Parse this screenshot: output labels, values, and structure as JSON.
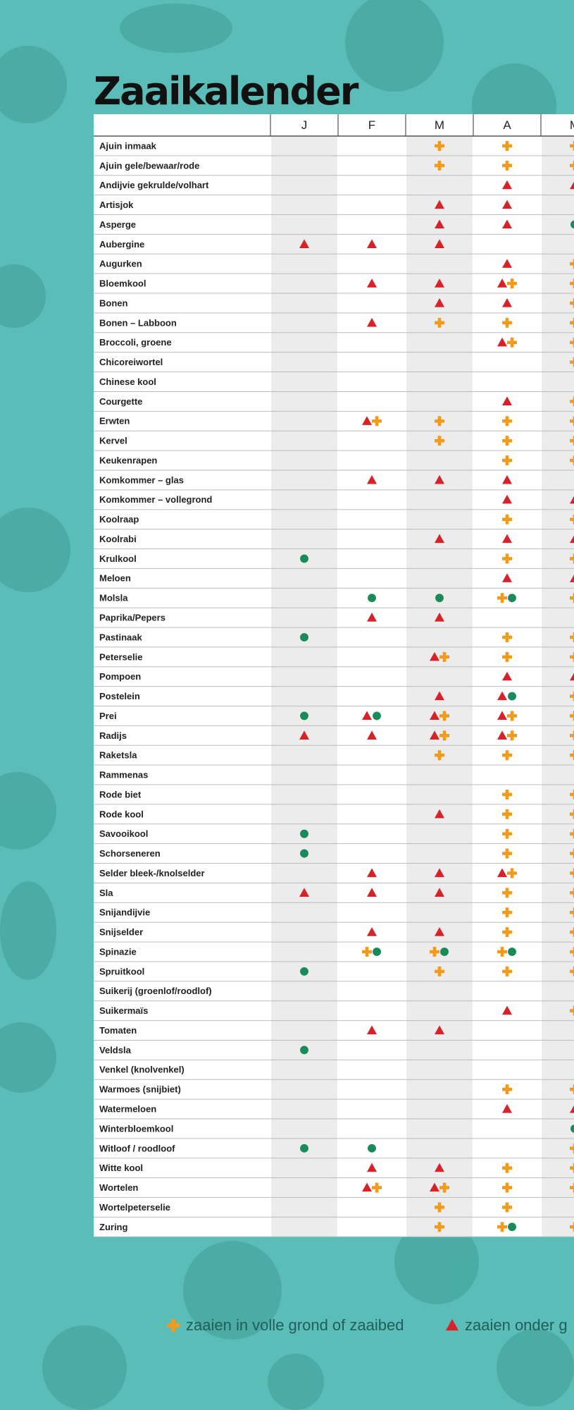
{
  "title": "Zaaikalender",
  "table": {
    "columns": [
      "J",
      "F",
      "M",
      "A",
      "M"
    ],
    "rows": [
      {
        "name": "Ajuin inmaak",
        "cells": [
          [],
          [],
          [
            "plus"
          ],
          [
            "plus"
          ],
          [
            "plus"
          ]
        ]
      },
      {
        "name": "Ajuin gele/bewaar/rode",
        "cells": [
          [],
          [],
          [
            "plus"
          ],
          [
            "plus"
          ],
          [
            "plus"
          ]
        ]
      },
      {
        "name": "Andijvie gekrulde/volhart",
        "cells": [
          [],
          [],
          [],
          [
            "triangle"
          ],
          [
            "triangle"
          ]
        ]
      },
      {
        "name": "Artisjok",
        "cells": [
          [],
          [],
          [
            "triangle"
          ],
          [
            "triangle"
          ],
          []
        ]
      },
      {
        "name": "Asperge",
        "cells": [
          [],
          [],
          [
            "triangle"
          ],
          [
            "triangle"
          ],
          [
            "circle"
          ]
        ]
      },
      {
        "name": "Aubergine",
        "cells": [
          [
            "triangle"
          ],
          [
            "triangle"
          ],
          [
            "triangle"
          ],
          [],
          []
        ]
      },
      {
        "name": "Augurken",
        "cells": [
          [],
          [],
          [],
          [
            "triangle"
          ],
          [
            "plus"
          ]
        ]
      },
      {
        "name": "Bloemkool",
        "cells": [
          [],
          [
            "triangle"
          ],
          [
            "triangle"
          ],
          [
            "triangle",
            "plus"
          ],
          [
            "plus"
          ]
        ]
      },
      {
        "name": "Bonen",
        "cells": [
          [],
          [],
          [
            "triangle"
          ],
          [
            "triangle"
          ],
          [
            "plus"
          ]
        ]
      },
      {
        "name": "Bonen – Labboon",
        "cells": [
          [],
          [
            "triangle"
          ],
          [
            "plus"
          ],
          [
            "plus"
          ],
          [
            "plus"
          ]
        ]
      },
      {
        "name": "Broccoli, groene",
        "cells": [
          [],
          [],
          [],
          [
            "triangle",
            "plus"
          ],
          [
            "plus"
          ]
        ]
      },
      {
        "name": "Chicoreiwortel",
        "cells": [
          [],
          [],
          [],
          [],
          [
            "plus"
          ]
        ]
      },
      {
        "name": "Chinese kool",
        "cells": [
          [],
          [],
          [],
          [],
          []
        ]
      },
      {
        "name": "Courgette",
        "cells": [
          [],
          [],
          [],
          [
            "triangle"
          ],
          [
            "plus"
          ]
        ]
      },
      {
        "name": "Erwten",
        "cells": [
          [],
          [
            "triangle",
            "plus"
          ],
          [
            "plus"
          ],
          [
            "plus"
          ],
          [
            "plus"
          ]
        ]
      },
      {
        "name": "Kervel",
        "cells": [
          [],
          [],
          [
            "plus"
          ],
          [
            "plus"
          ],
          [
            "plus"
          ]
        ]
      },
      {
        "name": "Keukenrapen",
        "cells": [
          [],
          [],
          [],
          [
            "plus"
          ],
          [
            "plus"
          ]
        ]
      },
      {
        "name": "Komkommer – glas",
        "cells": [
          [],
          [
            "triangle"
          ],
          [
            "triangle"
          ],
          [
            "triangle"
          ],
          []
        ]
      },
      {
        "name": "Komkommer – vollegrond",
        "cells": [
          [],
          [],
          [],
          [
            "triangle"
          ],
          [
            "triangle"
          ]
        ]
      },
      {
        "name": "Koolraap",
        "cells": [
          [],
          [],
          [],
          [
            "plus"
          ],
          [
            "plus"
          ]
        ]
      },
      {
        "name": "Koolrabi",
        "cells": [
          [],
          [],
          [
            "triangle"
          ],
          [
            "triangle"
          ],
          [
            "triangle"
          ]
        ]
      },
      {
        "name": "Krulkool",
        "cells": [
          [
            "circle"
          ],
          [],
          [],
          [
            "plus"
          ],
          [
            "plus"
          ]
        ]
      },
      {
        "name": "Meloen",
        "cells": [
          [],
          [],
          [],
          [
            "triangle"
          ],
          [
            "triangle"
          ]
        ]
      },
      {
        "name": "Molsla",
        "cells": [
          [],
          [
            "circle"
          ],
          [
            "circle"
          ],
          [
            "plus",
            "circle"
          ],
          [
            "plus"
          ]
        ]
      },
      {
        "name": "Paprika/Pepers",
        "cells": [
          [],
          [
            "triangle"
          ],
          [
            "triangle"
          ],
          [],
          []
        ]
      },
      {
        "name": "Pastinaak",
        "cells": [
          [
            "circle"
          ],
          [],
          [],
          [
            "plus"
          ],
          [
            "plus"
          ]
        ]
      },
      {
        "name": "Peterselie",
        "cells": [
          [],
          [],
          [
            "triangle",
            "plus"
          ],
          [
            "plus"
          ],
          [
            "plus"
          ]
        ]
      },
      {
        "name": "Pompoen",
        "cells": [
          [],
          [],
          [],
          [
            "triangle"
          ],
          [
            "triangle"
          ]
        ]
      },
      {
        "name": "Postelein",
        "cells": [
          [],
          [],
          [
            "triangle"
          ],
          [
            "triangle",
            "circle"
          ],
          [
            "plus"
          ]
        ]
      },
      {
        "name": "Prei",
        "cells": [
          [
            "circle"
          ],
          [
            "triangle",
            "circle"
          ],
          [
            "triangle",
            "plus"
          ],
          [
            "triangle",
            "plus"
          ],
          [
            "plus"
          ]
        ]
      },
      {
        "name": "Radijs",
        "cells": [
          [
            "triangle"
          ],
          [
            "triangle"
          ],
          [
            "triangle",
            "plus"
          ],
          [
            "triangle",
            "plus"
          ],
          [
            "plus"
          ]
        ]
      },
      {
        "name": "Raketsla",
        "cells": [
          [],
          [],
          [
            "plus"
          ],
          [
            "plus"
          ],
          [
            "plus"
          ]
        ]
      },
      {
        "name": "Rammenas",
        "cells": [
          [],
          [],
          [],
          [],
          []
        ]
      },
      {
        "name": "Rode biet",
        "cells": [
          [],
          [],
          [],
          [
            "plus"
          ],
          [
            "plus"
          ]
        ]
      },
      {
        "name": "Rode kool",
        "cells": [
          [],
          [],
          [
            "triangle"
          ],
          [
            "plus"
          ],
          [
            "plus"
          ]
        ]
      },
      {
        "name": "Savooikool",
        "cells": [
          [
            "circle"
          ],
          [],
          [],
          [
            "plus"
          ],
          [
            "plus"
          ]
        ]
      },
      {
        "name": "Schorseneren",
        "cells": [
          [
            "circle"
          ],
          [],
          [],
          [
            "plus"
          ],
          [
            "plus"
          ]
        ]
      },
      {
        "name": "Selder bleek-/knolselder",
        "cells": [
          [],
          [
            "triangle"
          ],
          [
            "triangle"
          ],
          [
            "triangle",
            "plus"
          ],
          [
            "plus"
          ]
        ]
      },
      {
        "name": "Sla",
        "cells": [
          [
            "triangle"
          ],
          [
            "triangle"
          ],
          [
            "triangle"
          ],
          [
            "plus"
          ],
          [
            "plus"
          ]
        ]
      },
      {
        "name": "Snijandijvie",
        "cells": [
          [],
          [],
          [],
          [
            "plus"
          ],
          [
            "plus"
          ]
        ]
      },
      {
        "name": "Snijselder",
        "cells": [
          [],
          [
            "triangle"
          ],
          [
            "triangle"
          ],
          [
            "plus"
          ],
          [
            "plus"
          ]
        ]
      },
      {
        "name": "Spinazie",
        "cells": [
          [],
          [
            "plus",
            "circle"
          ],
          [
            "plus",
            "circle"
          ],
          [
            "plus",
            "circle"
          ],
          [
            "plus"
          ]
        ]
      },
      {
        "name": "Spruitkool",
        "cells": [
          [
            "circle"
          ],
          [],
          [
            "plus"
          ],
          [
            "plus"
          ],
          [
            "plus"
          ]
        ]
      },
      {
        "name": "Suikerij (groenlof/roodlof)",
        "cells": [
          [],
          [],
          [],
          [],
          []
        ]
      },
      {
        "name": "Suikermaïs",
        "cells": [
          [],
          [],
          [],
          [
            "triangle"
          ],
          [
            "plus"
          ]
        ]
      },
      {
        "name": "Tomaten",
        "cells": [
          [],
          [
            "triangle"
          ],
          [
            "triangle"
          ],
          [],
          []
        ]
      },
      {
        "name": "Veldsla",
        "cells": [
          [
            "circle"
          ],
          [],
          [],
          [],
          []
        ]
      },
      {
        "name": "Venkel (knolvenkel)",
        "cells": [
          [],
          [],
          [],
          [],
          []
        ]
      },
      {
        "name": "Warmoes (snijbiet)",
        "cells": [
          [],
          [],
          [],
          [
            "plus"
          ],
          [
            "plus"
          ]
        ]
      },
      {
        "name": "Watermeloen",
        "cells": [
          [],
          [],
          [],
          [
            "triangle"
          ],
          [
            "triangle"
          ]
        ]
      },
      {
        "name": "Winterbloemkool",
        "cells": [
          [],
          [],
          [],
          [],
          [
            "circle"
          ]
        ]
      },
      {
        "name": "Witloof / roodloof",
        "cells": [
          [
            "circle"
          ],
          [
            "circle"
          ],
          [],
          [],
          [
            "plus"
          ]
        ]
      },
      {
        "name": "Witte kool",
        "cells": [
          [],
          [
            "triangle"
          ],
          [
            "triangle"
          ],
          [
            "plus"
          ],
          [
            "plus"
          ]
        ]
      },
      {
        "name": "Wortelen",
        "cells": [
          [],
          [
            "triangle",
            "plus"
          ],
          [
            "triangle",
            "plus"
          ],
          [
            "plus"
          ],
          [
            "plus"
          ]
        ]
      },
      {
        "name": "Wortelpeterselie",
        "cells": [
          [],
          [],
          [
            "plus"
          ],
          [
            "plus"
          ],
          []
        ]
      },
      {
        "name": "Zuring",
        "cells": [
          [],
          [],
          [
            "plus"
          ],
          [
            "plus",
            "circle"
          ],
          [
            "plus"
          ]
        ]
      }
    ]
  },
  "legend": [
    {
      "symbol": "plus",
      "label": "zaaien in volle grond of zaaibed"
    },
    {
      "symbol": "triangle",
      "label": "zaaien onder g"
    }
  ]
}
